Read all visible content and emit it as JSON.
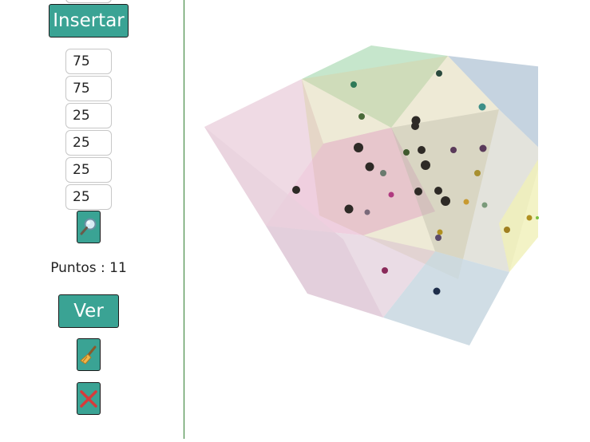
{
  "sidebar": {
    "insert_label": "Insertar",
    "fields": [
      "75",
      "75",
      "25",
      "25",
      "25",
      "25"
    ],
    "points_label": "Puntos : ",
    "points_count": "11",
    "view_label": "Ver"
  },
  "colors": {
    "button": "#3aa394",
    "divider": "#2f7d2f"
  },
  "icons": {
    "search": "magnifier-icon",
    "clear": "broom-icon",
    "delete": "red-x-icon"
  }
}
